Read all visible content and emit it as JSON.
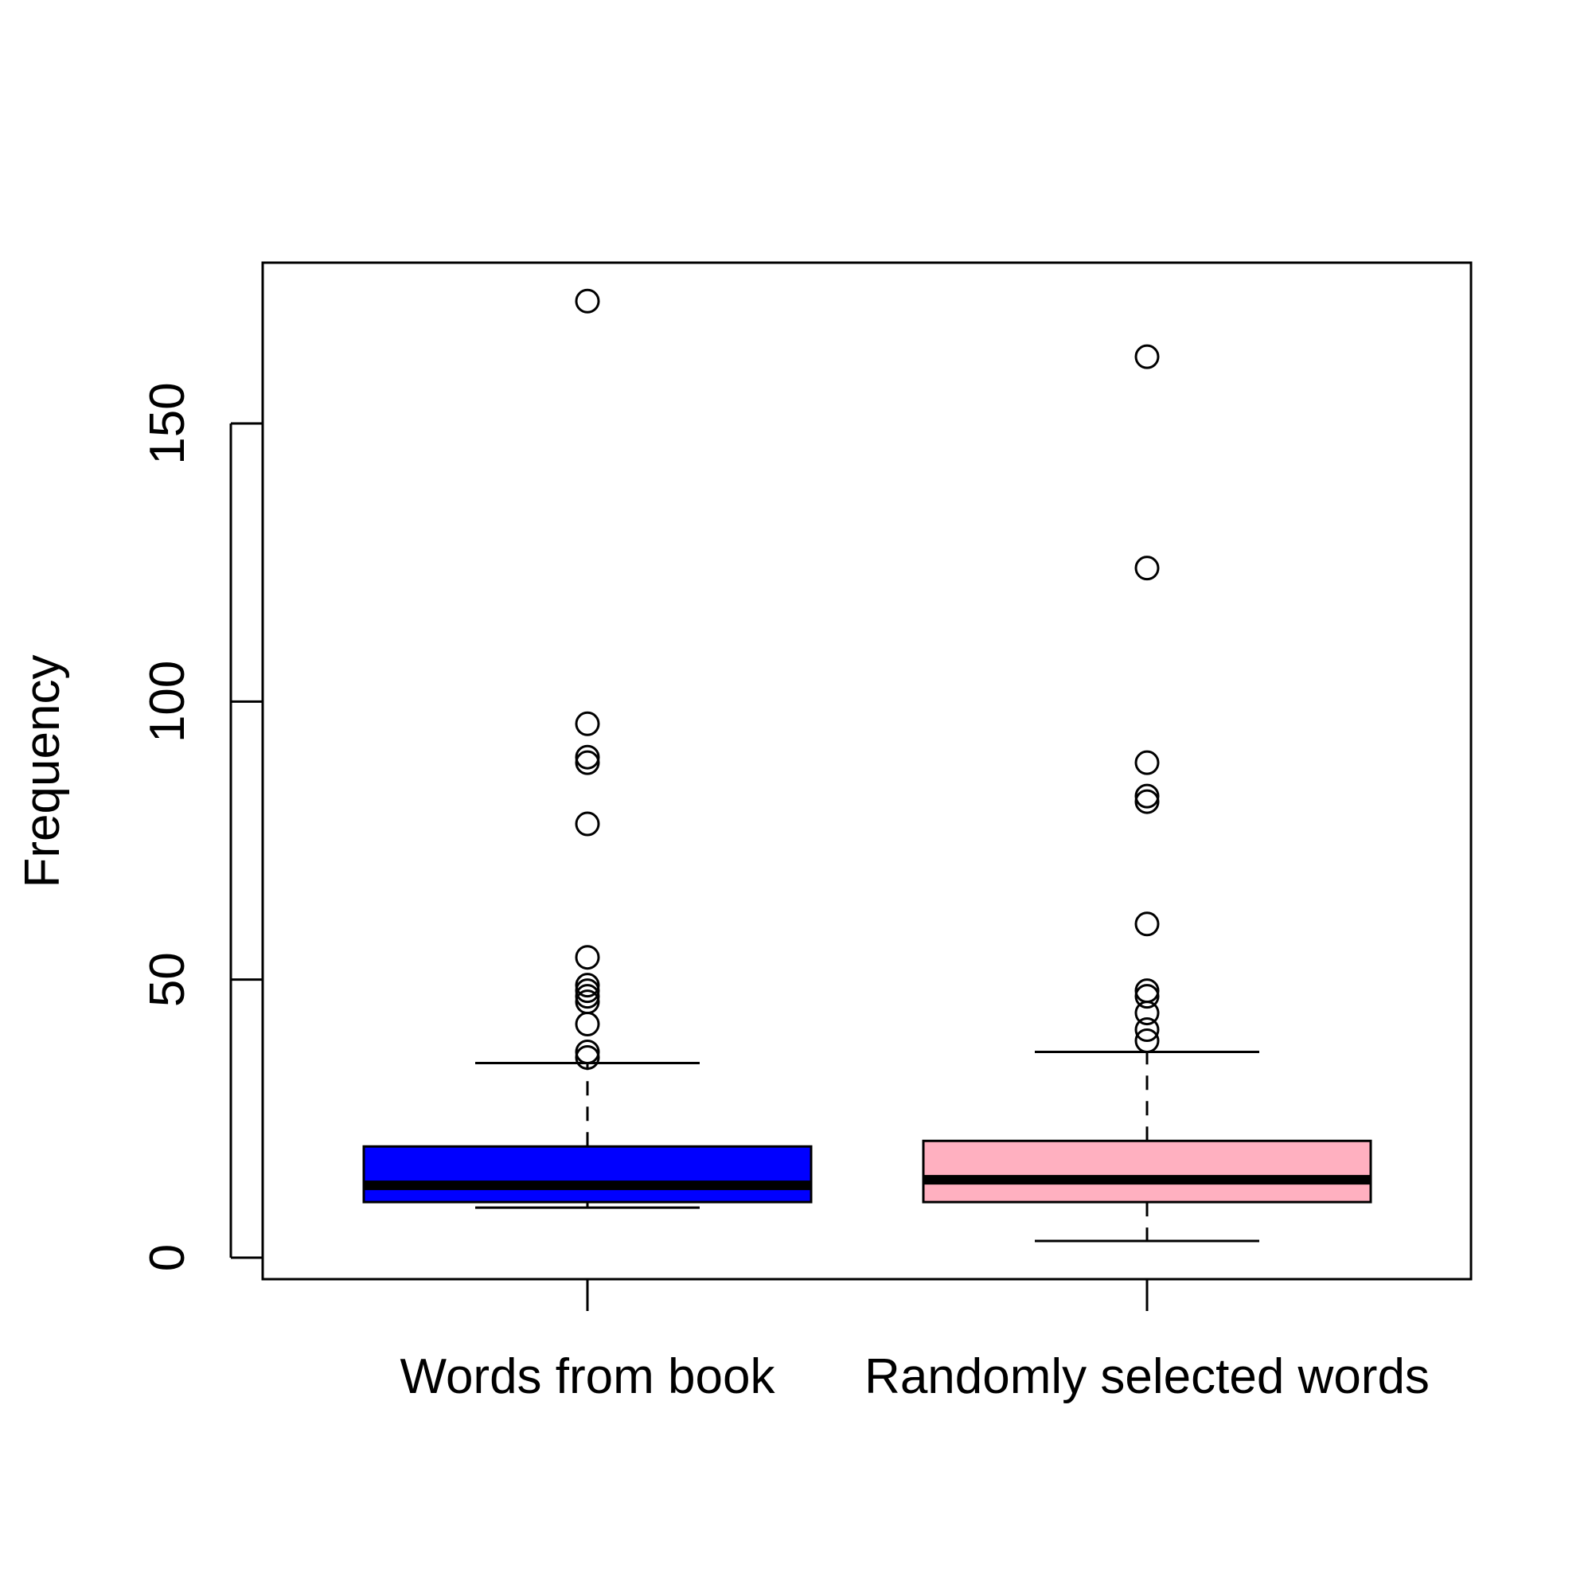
{
  "chart_data": {
    "type": "box",
    "title": "",
    "xlabel": "",
    "ylabel": "Frequency",
    "ylim": [
      -4,
      179
    ],
    "yticks": [
      0,
      50,
      100,
      150
    ],
    "grid": false,
    "legend": "none",
    "categories": [
      "Words from book",
      "Randomly selected words"
    ],
    "series": [
      {
        "category": "Words from book",
        "color": "#0000ff",
        "whisker_low": 9,
        "q1": 10,
        "median": 13,
        "q3": 20,
        "whisker_high": 35,
        "outliers": [
          36,
          37,
          42,
          46,
          47,
          48,
          49,
          54,
          78,
          89,
          90,
          96,
          172
        ]
      },
      {
        "category": "Randomly selected words",
        "color": "#ffb0c0",
        "whisker_low": 3,
        "q1": 10,
        "median": 14,
        "q3": 21,
        "whisker_high": 37,
        "outliers": [
          39,
          41,
          44,
          47,
          48,
          60,
          82,
          83,
          89,
          124,
          162
        ]
      }
    ]
  }
}
